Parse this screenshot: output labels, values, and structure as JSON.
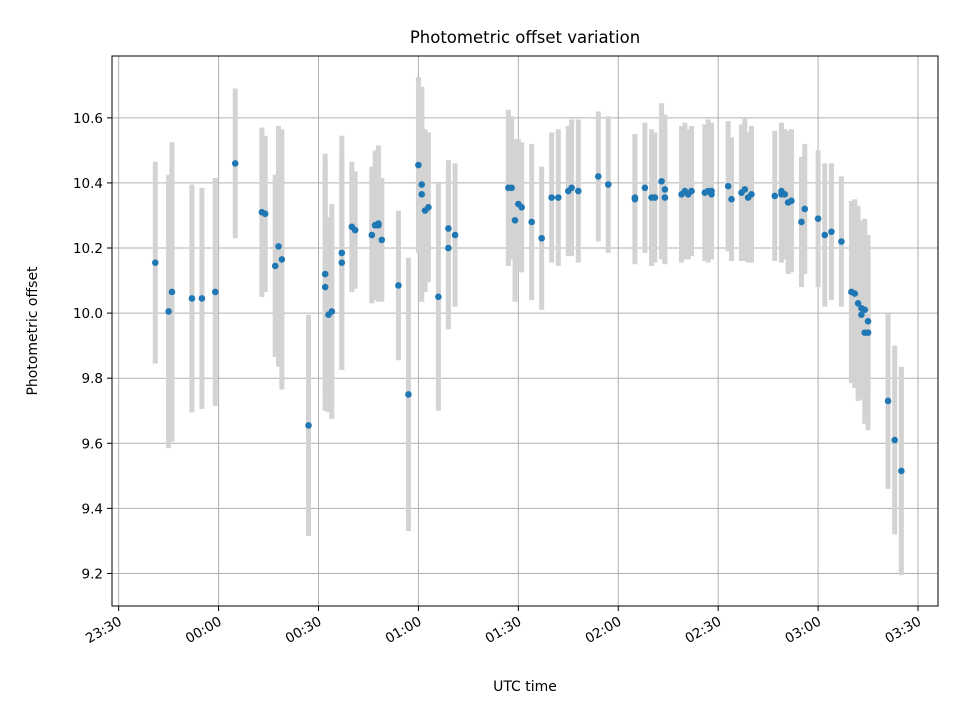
{
  "chart_data": {
    "type": "scatter",
    "title": "Photometric offset variation",
    "xlabel": "UTC time",
    "ylabel": "Photometric offset",
    "xlim": [
      "23:28",
      "03:36"
    ],
    "ylim": [
      9.1,
      10.79
    ],
    "grid": true,
    "x_ticks": [
      "23:30",
      "00:00",
      "00:30",
      "01:00",
      "01:30",
      "02:00",
      "02:30",
      "03:00",
      "03:30"
    ],
    "y_ticks": [
      9.2,
      9.4,
      9.6,
      9.8,
      10.0,
      10.2,
      10.4,
      10.6
    ],
    "colors": {
      "point": "#1f77b4",
      "errorbar": "#d3d3d3",
      "grid": "#b0b0b0"
    },
    "x": [
      "23:41",
      "23:45",
      "23:46",
      "23:52",
      "23:55",
      "23:59",
      "00:05",
      "00:13",
      "00:14",
      "00:17",
      "00:18",
      "00:19",
      "00:27",
      "00:32",
      "00:32",
      "00:33",
      "00:34",
      "00:37",
      "00:37",
      "00:40",
      "00:41",
      "00:46",
      "00:47",
      "00:48",
      "00:48",
      "00:49",
      "00:54",
      "00:57",
      "01:00",
      "01:01",
      "01:01",
      "01:02",
      "01:03",
      "01:06",
      "01:09",
      "01:09",
      "01:11",
      "01:27",
      "01:28",
      "01:29",
      "01:30",
      "01:31",
      "01:34",
      "01:37",
      "01:40",
      "01:42",
      "01:45",
      "01:46",
      "01:48",
      "01:54",
      "01:57",
      "02:05",
      "02:05",
      "02:08",
      "02:10",
      "02:11",
      "02:13",
      "02:14",
      "02:14",
      "02:19",
      "02:20",
      "02:21",
      "02:22",
      "02:26",
      "02:27",
      "02:28",
      "02:28",
      "02:33",
      "02:34",
      "02:37",
      "02:38",
      "02:39",
      "02:40",
      "02:47",
      "02:49",
      "02:49",
      "02:50",
      "02:51",
      "02:52",
      "02:55",
      "02:56",
      "03:00",
      "03:02",
      "03:04",
      "03:07",
      "03:10",
      "03:11",
      "03:12",
      "03:13",
      "03:13",
      "03:14",
      "03:14",
      "03:15",
      "03:15",
      "03:21",
      "03:23",
      "03:25"
    ],
    "y": [
      10.155,
      10.005,
      10.065,
      10.045,
      10.045,
      10.065,
      10.46,
      10.31,
      10.305,
      10.145,
      10.205,
      10.165,
      9.655,
      10.12,
      10.08,
      9.995,
      10.005,
      10.155,
      10.185,
      10.265,
      10.255,
      10.24,
      10.27,
      10.27,
      10.275,
      10.225,
      10.085,
      9.75,
      10.455,
      10.365,
      10.395,
      10.315,
      10.325,
      10.05,
      10.2,
      10.26,
      10.24,
      10.385,
      10.385,
      10.285,
      10.335,
      10.325,
      10.28,
      10.23,
      10.355,
      10.355,
      10.375,
      10.385,
      10.375,
      10.42,
      10.395,
      10.35,
      10.355,
      10.385,
      10.355,
      10.355,
      10.405,
      10.38,
      10.355,
      10.365,
      10.375,
      10.365,
      10.375,
      10.37,
      10.375,
      10.365,
      10.375,
      10.39,
      10.35,
      10.37,
      10.38,
      10.355,
      10.365,
      10.36,
      10.365,
      10.375,
      10.365,
      10.34,
      10.345,
      10.28,
      10.32,
      10.29,
      10.24,
      10.25,
      10.22,
      10.065,
      10.06,
      10.03,
      10.015,
      9.995,
      10.01,
      9.94,
      9.94,
      9.975,
      9.73,
      9.61,
      9.515
    ],
    "err": [
      0.31,
      0.42,
      0.46,
      0.35,
      0.34,
      0.35,
      0.23,
      0.26,
      0.24,
      0.28,
      0.37,
      0.4,
      0.34,
      0.37,
      0.38,
      0.3,
      0.33,
      0.33,
      0.36,
      0.2,
      0.18,
      0.21,
      0.23,
      0.22,
      0.24,
      0.19,
      0.23,
      0.42,
      0.27,
      0.33,
      0.3,
      0.25,
      0.23,
      0.35,
      0.25,
      0.21,
      0.22,
      0.24,
      0.22,
      0.25,
      0.2,
      0.2,
      0.24,
      0.22,
      0.2,
      0.21,
      0.2,
      0.21,
      0.22,
      0.2,
      0.21,
      0.2,
      0.19,
      0.2,
      0.21,
      0.2,
      0.24,
      0.23,
      0.2,
      0.21,
      0.21,
      0.2,
      0.2,
      0.21,
      0.22,
      0.2,
      0.21,
      0.2,
      0.19,
      0.21,
      0.22,
      0.2,
      0.21,
      0.2,
      0.21,
      0.21,
      0.2,
      0.22,
      0.22,
      0.2,
      0.2,
      0.21,
      0.22,
      0.21,
      0.2,
      0.28,
      0.29,
      0.3,
      0.27,
      0.26,
      0.28,
      0.28,
      0.3,
      0.24,
      0.27,
      0.29,
      0.32
    ]
  }
}
